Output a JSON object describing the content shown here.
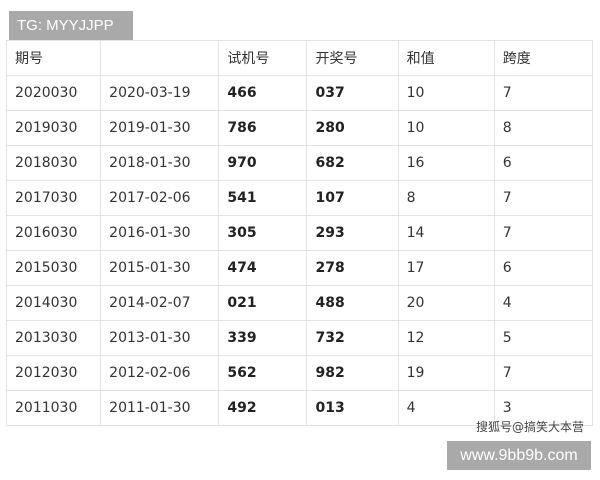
{
  "tg_label": "TG: MYYJJPP",
  "headers": [
    "期号",
    "",
    "试机号",
    "开奖号",
    "和值",
    "跨度"
  ],
  "rows": [
    [
      "2020030",
      "2020-03-19",
      "466",
      "037",
      "10",
      "7"
    ],
    [
      "2019030",
      "2019-01-30",
      "786",
      "280",
      "10",
      "8"
    ],
    [
      "2018030",
      "2018-01-30",
      "970",
      "682",
      "16",
      "6"
    ],
    [
      "2017030",
      "2017-02-06",
      "541",
      "107",
      "8",
      "7"
    ],
    [
      "2016030",
      "2016-01-30",
      "305",
      "293",
      "14",
      "7"
    ],
    [
      "2015030",
      "2015-01-30",
      "474",
      "278",
      "17",
      "6"
    ],
    [
      "2014030",
      "2014-02-07",
      "021",
      "488",
      "20",
      "4"
    ],
    [
      "2013030",
      "2013-01-30",
      "339",
      "732",
      "12",
      "5"
    ],
    [
      "2012030",
      "2012-02-06",
      "562",
      "982",
      "19",
      "7"
    ],
    [
      "2011030",
      "2011-01-30",
      "492",
      "013",
      "4",
      "3"
    ]
  ],
  "watermark": "搜狐号@搞笑大本营",
  "site_label": "www.9bb9b.com"
}
